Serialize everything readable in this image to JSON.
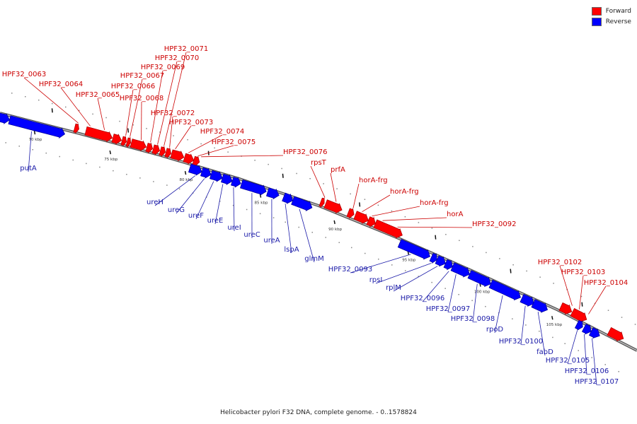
{
  "legend": {
    "forward_label": "Forward",
    "reverse_label": "Reverse",
    "forward_color": "#ff0000",
    "reverse_color": "#0000ff"
  },
  "caption": "Helicobacter pylori F32 DNA, complete genome. - 0..1578824",
  "scale_marks": [
    "70 kbp",
    "75 kbp",
    "80 kbp",
    "85 kbp",
    "90 kbp",
    "95 kbp",
    "100 kbp",
    "105 kbp"
  ],
  "forward_genes": [
    "HPF32_0063",
    "HPF32_0064",
    "HPF32_0065",
    "HPF32_0066",
    "HPF32_0067",
    "HPF32_0068",
    "HPF32_0069",
    "HPF32_0070",
    "HPF32_0071",
    "HPF32_0072",
    "HPF32_0073",
    "HPF32_0074",
    "HPF32_0075",
    "HPF32_0076",
    "rpsT",
    "prfA",
    "horA-frg",
    "horA-frg",
    "horA-frg",
    "horA",
    "HPF32_0092",
    "HPF32_0102",
    "HPF32_0103",
    "HPF32_0104"
  ],
  "reverse_genes": [
    "putA",
    "ureH",
    "ureG",
    "ureF",
    "ureE",
    "ureI",
    "ureC",
    "ureA",
    "lspA",
    "glmM",
    "HPF32_0093",
    "rpsI",
    "rplM",
    "HPF32_0096",
    "HPF32_0097",
    "HPF32_0098",
    "rpoD",
    "HPF32_0100",
    "fabD",
    "HPF32_0105",
    "HPF32_0106",
    "HPF32_0107"
  ]
}
